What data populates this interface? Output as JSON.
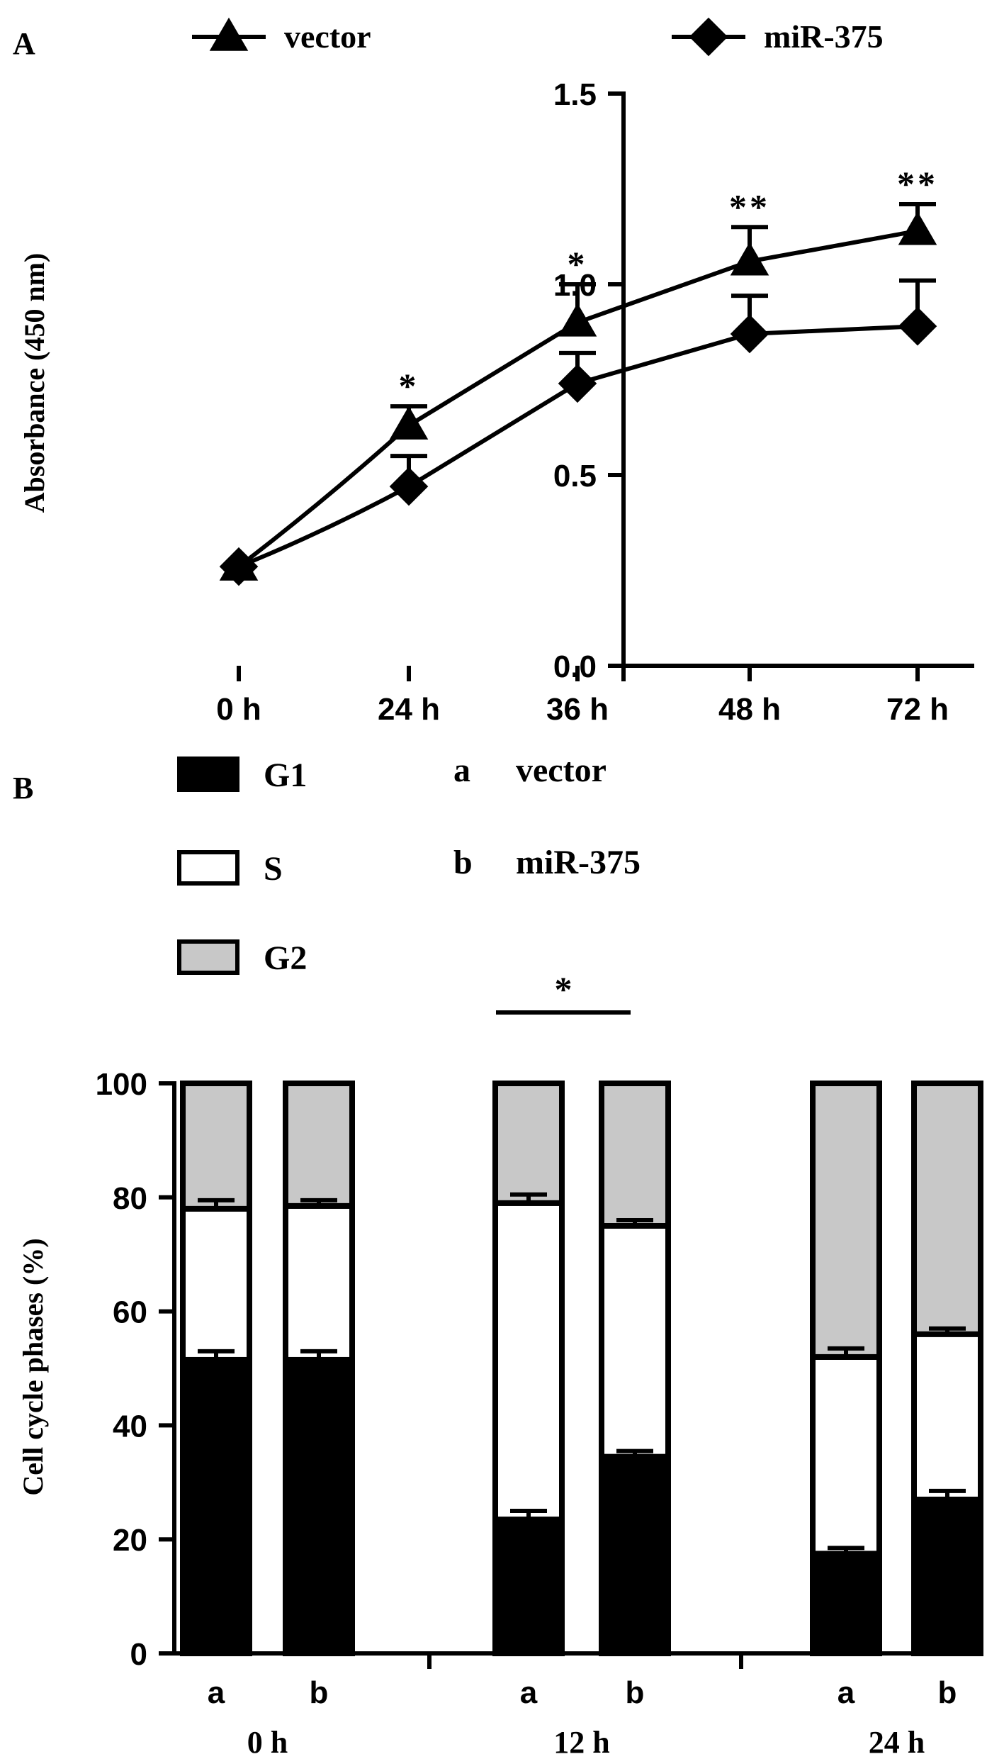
{
  "chart_data": [
    {
      "panel": "A",
      "type": "line",
      "xlabel": "",
      "ylabel": "Absorbance (450 nm)",
      "categories": [
        "0 h",
        "24 h",
        "36 h",
        "48 h",
        "72 h"
      ],
      "ylim": [
        0,
        1.5
      ],
      "yticks": [
        "0.0",
        "0.5",
        "1.0",
        "1.5"
      ],
      "legend_position": "top",
      "series": [
        {
          "name": "vector",
          "marker": "triangle",
          "values": [
            0.26,
            0.63,
            0.9,
            1.06,
            1.14
          ],
          "errors": [
            0.0,
            0.05,
            0.1,
            0.09,
            0.07
          ]
        },
        {
          "name": "miR-375",
          "marker": "diamond",
          "values": [
            0.26,
            0.47,
            0.74,
            0.87,
            0.89
          ],
          "errors": [
            0.0,
            0.08,
            0.08,
            0.1,
            0.12
          ]
        }
      ],
      "annotations": [
        "",
        "*",
        "*",
        "**",
        "**"
      ]
    },
    {
      "panel": "B",
      "type": "bar",
      "stacked": true,
      "xlabel": "",
      "ylabel": "Cell cycle phases (%)",
      "ylim": [
        0,
        100
      ],
      "yticks": [
        "0",
        "20",
        "40",
        "60",
        "80",
        "100"
      ],
      "groups": [
        "0 h",
        "12 h",
        "24 h"
      ],
      "bar_labels": [
        "a",
        "b"
      ],
      "group_legend": [
        {
          "key": "a",
          "name": "vector"
        },
        {
          "key": "b",
          "name": "miR-375"
        }
      ],
      "phase_legend": [
        {
          "name": "G1",
          "color": "#000000"
        },
        {
          "name": "S",
          "color": "#ffffff"
        },
        {
          "name": "G2",
          "color": "#c8c8c8"
        }
      ],
      "bars": [
        {
          "group": "0 h",
          "label": "a",
          "G1": 51.5,
          "S": 26.5,
          "G2": 22.0,
          "G1_err": 1.5,
          "S_err": 1.5
        },
        {
          "group": "0 h",
          "label": "b",
          "G1": 51.5,
          "S": 27.0,
          "G2": 21.5,
          "G1_err": 1.5,
          "S_err": 1.0
        },
        {
          "group": "12 h",
          "label": "a",
          "G1": 23.5,
          "S": 55.5,
          "G2": 21.0,
          "G1_err": 1.5,
          "S_err": 1.5
        },
        {
          "group": "12 h",
          "label": "b",
          "G1": 34.5,
          "S": 40.5,
          "G2": 25.0,
          "G1_err": 1.0,
          "S_err": 1.0
        },
        {
          "group": "24 h",
          "label": "a",
          "G1": 17.5,
          "S": 34.5,
          "G2": 48.0,
          "G1_err": 1.0,
          "S_err": 1.5
        },
        {
          "group": "24 h",
          "label": "b",
          "G1": 27.0,
          "S": 29.0,
          "G2": 44.0,
          "G1_err": 1.5,
          "S_err": 1.0
        }
      ],
      "annotation": "*"
    }
  ]
}
